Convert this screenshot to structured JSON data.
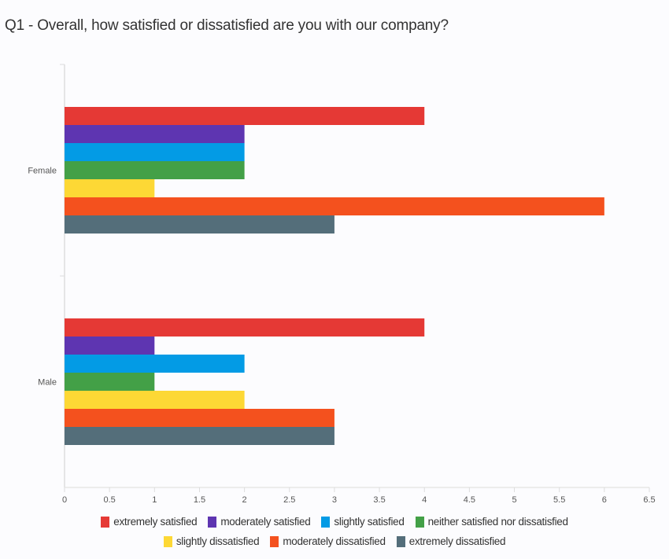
{
  "chart_data": {
    "type": "bar",
    "orientation": "horizontal",
    "title": "Q1 - Overall, how satisfied or dissatisfied are you with our company?",
    "categories": [
      "Female",
      "Male"
    ],
    "series": [
      {
        "name": "extremely satisfied",
        "color": "#e53935",
        "values": [
          4,
          4
        ]
      },
      {
        "name": "moderately satisfied",
        "color": "#5e35b1",
        "values": [
          2,
          1
        ]
      },
      {
        "name": "slightly satisfied",
        "color": "#039be5",
        "values": [
          2,
          2
        ]
      },
      {
        "name": "neither satisfied nor dissatisfied",
        "color": "#43a047",
        "values": [
          2,
          1
        ]
      },
      {
        "name": "slightly dissatisfied",
        "color": "#fdd835",
        "values": [
          1,
          2
        ]
      },
      {
        "name": "moderately dissatisfied",
        "color": "#f4511e",
        "values": [
          6,
          3
        ]
      },
      {
        "name": "extremely dissatisfied",
        "color": "#546e7a",
        "values": [
          3,
          3
        ]
      }
    ],
    "xticks": [
      "0",
      "0.5",
      "1",
      "1.5",
      "2",
      "2.5",
      "3",
      "3.5",
      "4",
      "4.5",
      "5",
      "5.5",
      "6",
      "6.5"
    ],
    "xlim": [
      0,
      6.5
    ],
    "grid": false,
    "legend_placement": "bottom"
  }
}
